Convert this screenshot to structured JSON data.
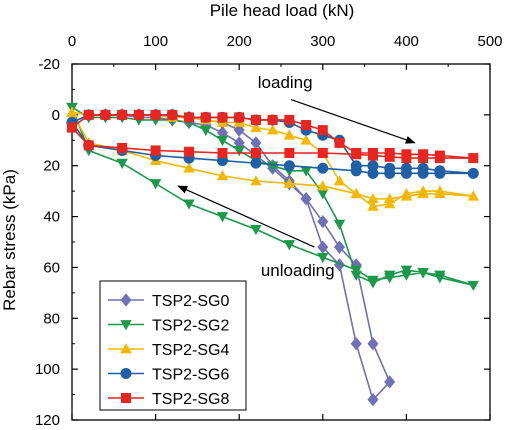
{
  "chart_data": {
    "type": "line",
    "title": "",
    "xlabel": "Pile head load (kN)",
    "ylabel": "Rebar stress (kPa)",
    "xlim": [
      0,
      500
    ],
    "ylim": [
      -20,
      120
    ],
    "y_inverted": true,
    "x_axis_position": "top",
    "x_ticks": [
      0,
      100,
      200,
      300,
      400,
      500
    ],
    "y_ticks": [
      -20,
      0,
      20,
      40,
      60,
      80,
      100,
      120
    ],
    "x_tick_labels": [
      "0",
      "100",
      "200",
      "300",
      "400",
      "500"
    ],
    "y_tick_labels": [
      "-20",
      "0",
      "20",
      "40",
      "60",
      "80",
      "100",
      "120"
    ],
    "grid": false,
    "legend_position": "bottom-left",
    "annotations": [
      {
        "text": "loading",
        "x": 255,
        "y": -13,
        "arrow_from": [
          262,
          -6
        ],
        "arrow_to": [
          410,
          11
        ]
      },
      {
        "text": "unloading",
        "x": 270,
        "y": 61,
        "arrow_from": [
          290,
          52
        ],
        "arrow_to": [
          127,
          28
        ]
      }
    ],
    "series": [
      {
        "name": "TSP2-SG0",
        "color": "#7070b8",
        "marker": "diamond",
        "x": [
          40,
          60,
          80,
          100,
          120,
          140,
          160,
          180,
          200,
          220,
          240,
          260,
          280,
          300,
          320,
          340,
          360,
          380,
          360,
          340,
          320,
          300,
          280,
          260,
          240,
          220,
          200,
          180,
          160,
          140,
          120,
          100,
          80,
          60,
          40
        ],
        "y": [
          0,
          0,
          1,
          1,
          2,
          3,
          4,
          7,
          11,
          16,
          21,
          27,
          33,
          42,
          52,
          59,
          90,
          105,
          112,
          90,
          59,
          52,
          33,
          26,
          20,
          11,
          6,
          3,
          2,
          1,
          0,
          0,
          0,
          0,
          0
        ]
      },
      {
        "name": "TSP2-SG2",
        "color": "#1a9a4a",
        "marker": "triangle-down",
        "x": [
          0,
          20,
          60,
          100,
          140,
          180,
          220,
          260,
          300,
          340,
          360,
          380,
          400,
          420,
          440,
          480,
          440,
          420,
          400,
          380,
          360,
          340,
          320,
          300,
          280,
          260,
          240,
          220,
          200,
          180,
          160,
          140,
          120,
          100,
          80,
          60,
          40,
          20,
          0
        ],
        "y": [
          -3,
          14,
          19,
          27,
          35,
          40,
          45,
          51,
          56,
          61,
          65,
          64,
          63,
          62,
          63,
          67,
          64,
          62,
          61,
          63,
          66,
          63,
          43,
          31,
          22,
          22,
          20,
          18,
          14,
          10,
          6,
          3,
          2,
          2,
          2,
          1,
          1,
          1,
          -3
        ]
      },
      {
        "name": "TSP2-SG4",
        "color": "#f5b800",
        "marker": "triangle-up",
        "x": [
          0,
          20,
          60,
          100,
          140,
          180,
          220,
          260,
          300,
          340,
          360,
          380,
          400,
          420,
          440,
          480,
          440,
          420,
          400,
          380,
          360,
          340,
          320,
          300,
          280,
          260,
          240,
          220,
          200,
          180,
          160,
          140,
          120,
          100,
          80,
          60,
          40,
          20,
          0
        ],
        "y": [
          -1,
          11,
          14,
          18,
          21,
          24,
          26,
          27,
          28,
          31,
          33,
          33,
          32,
          31,
          31,
          32,
          30,
          30,
          31,
          35,
          36,
          31,
          26,
          15,
          10,
          8,
          6,
          5,
          3,
          3,
          2,
          1,
          1,
          0,
          0,
          0,
          0,
          0,
          -1
        ]
      },
      {
        "name": "TSP2-SG6",
        "color": "#1f5fa5",
        "marker": "circle",
        "x": [
          0,
          20,
          60,
          100,
          140,
          180,
          220,
          260,
          300,
          340,
          360,
          380,
          400,
          420,
          440,
          480,
          440,
          420,
          400,
          380,
          360,
          340,
          320,
          300,
          280,
          260,
          240,
          220,
          200,
          180,
          160,
          140,
          120,
          100,
          80,
          60,
          40,
          20,
          0
        ],
        "y": [
          3,
          12,
          14,
          16,
          17,
          18,
          19,
          20,
          21,
          22,
          23,
          23,
          23,
          23,
          23,
          23,
          22,
          21,
          21,
          21,
          20,
          20,
          10,
          8,
          6,
          3,
          2,
          2,
          1,
          1,
          1,
          1,
          0,
          0,
          0,
          0,
          0,
          0,
          3
        ]
      },
      {
        "name": "TSP2-SG8",
        "color": "#e8251e",
        "marker": "square",
        "x": [
          0,
          20,
          60,
          100,
          140,
          180,
          220,
          260,
          300,
          340,
          360,
          380,
          400,
          420,
          440,
          480,
          440,
          420,
          400,
          380,
          360,
          340,
          320,
          300,
          280,
          260,
          240,
          220,
          200,
          180,
          160,
          140,
          120,
          100,
          80,
          60,
          40,
          20,
          0
        ],
        "y": [
          5,
          12,
          13,
          14,
          14.5,
          15,
          15,
          15,
          15,
          15.5,
          16,
          16.5,
          17,
          17,
          17,
          17,
          16,
          15.5,
          15.5,
          15,
          15,
          15,
          11,
          6,
          4,
          2,
          2,
          2,
          1,
          1,
          1,
          1,
          0,
          0,
          0,
          0,
          0,
          0,
          5
        ]
      }
    ]
  }
}
